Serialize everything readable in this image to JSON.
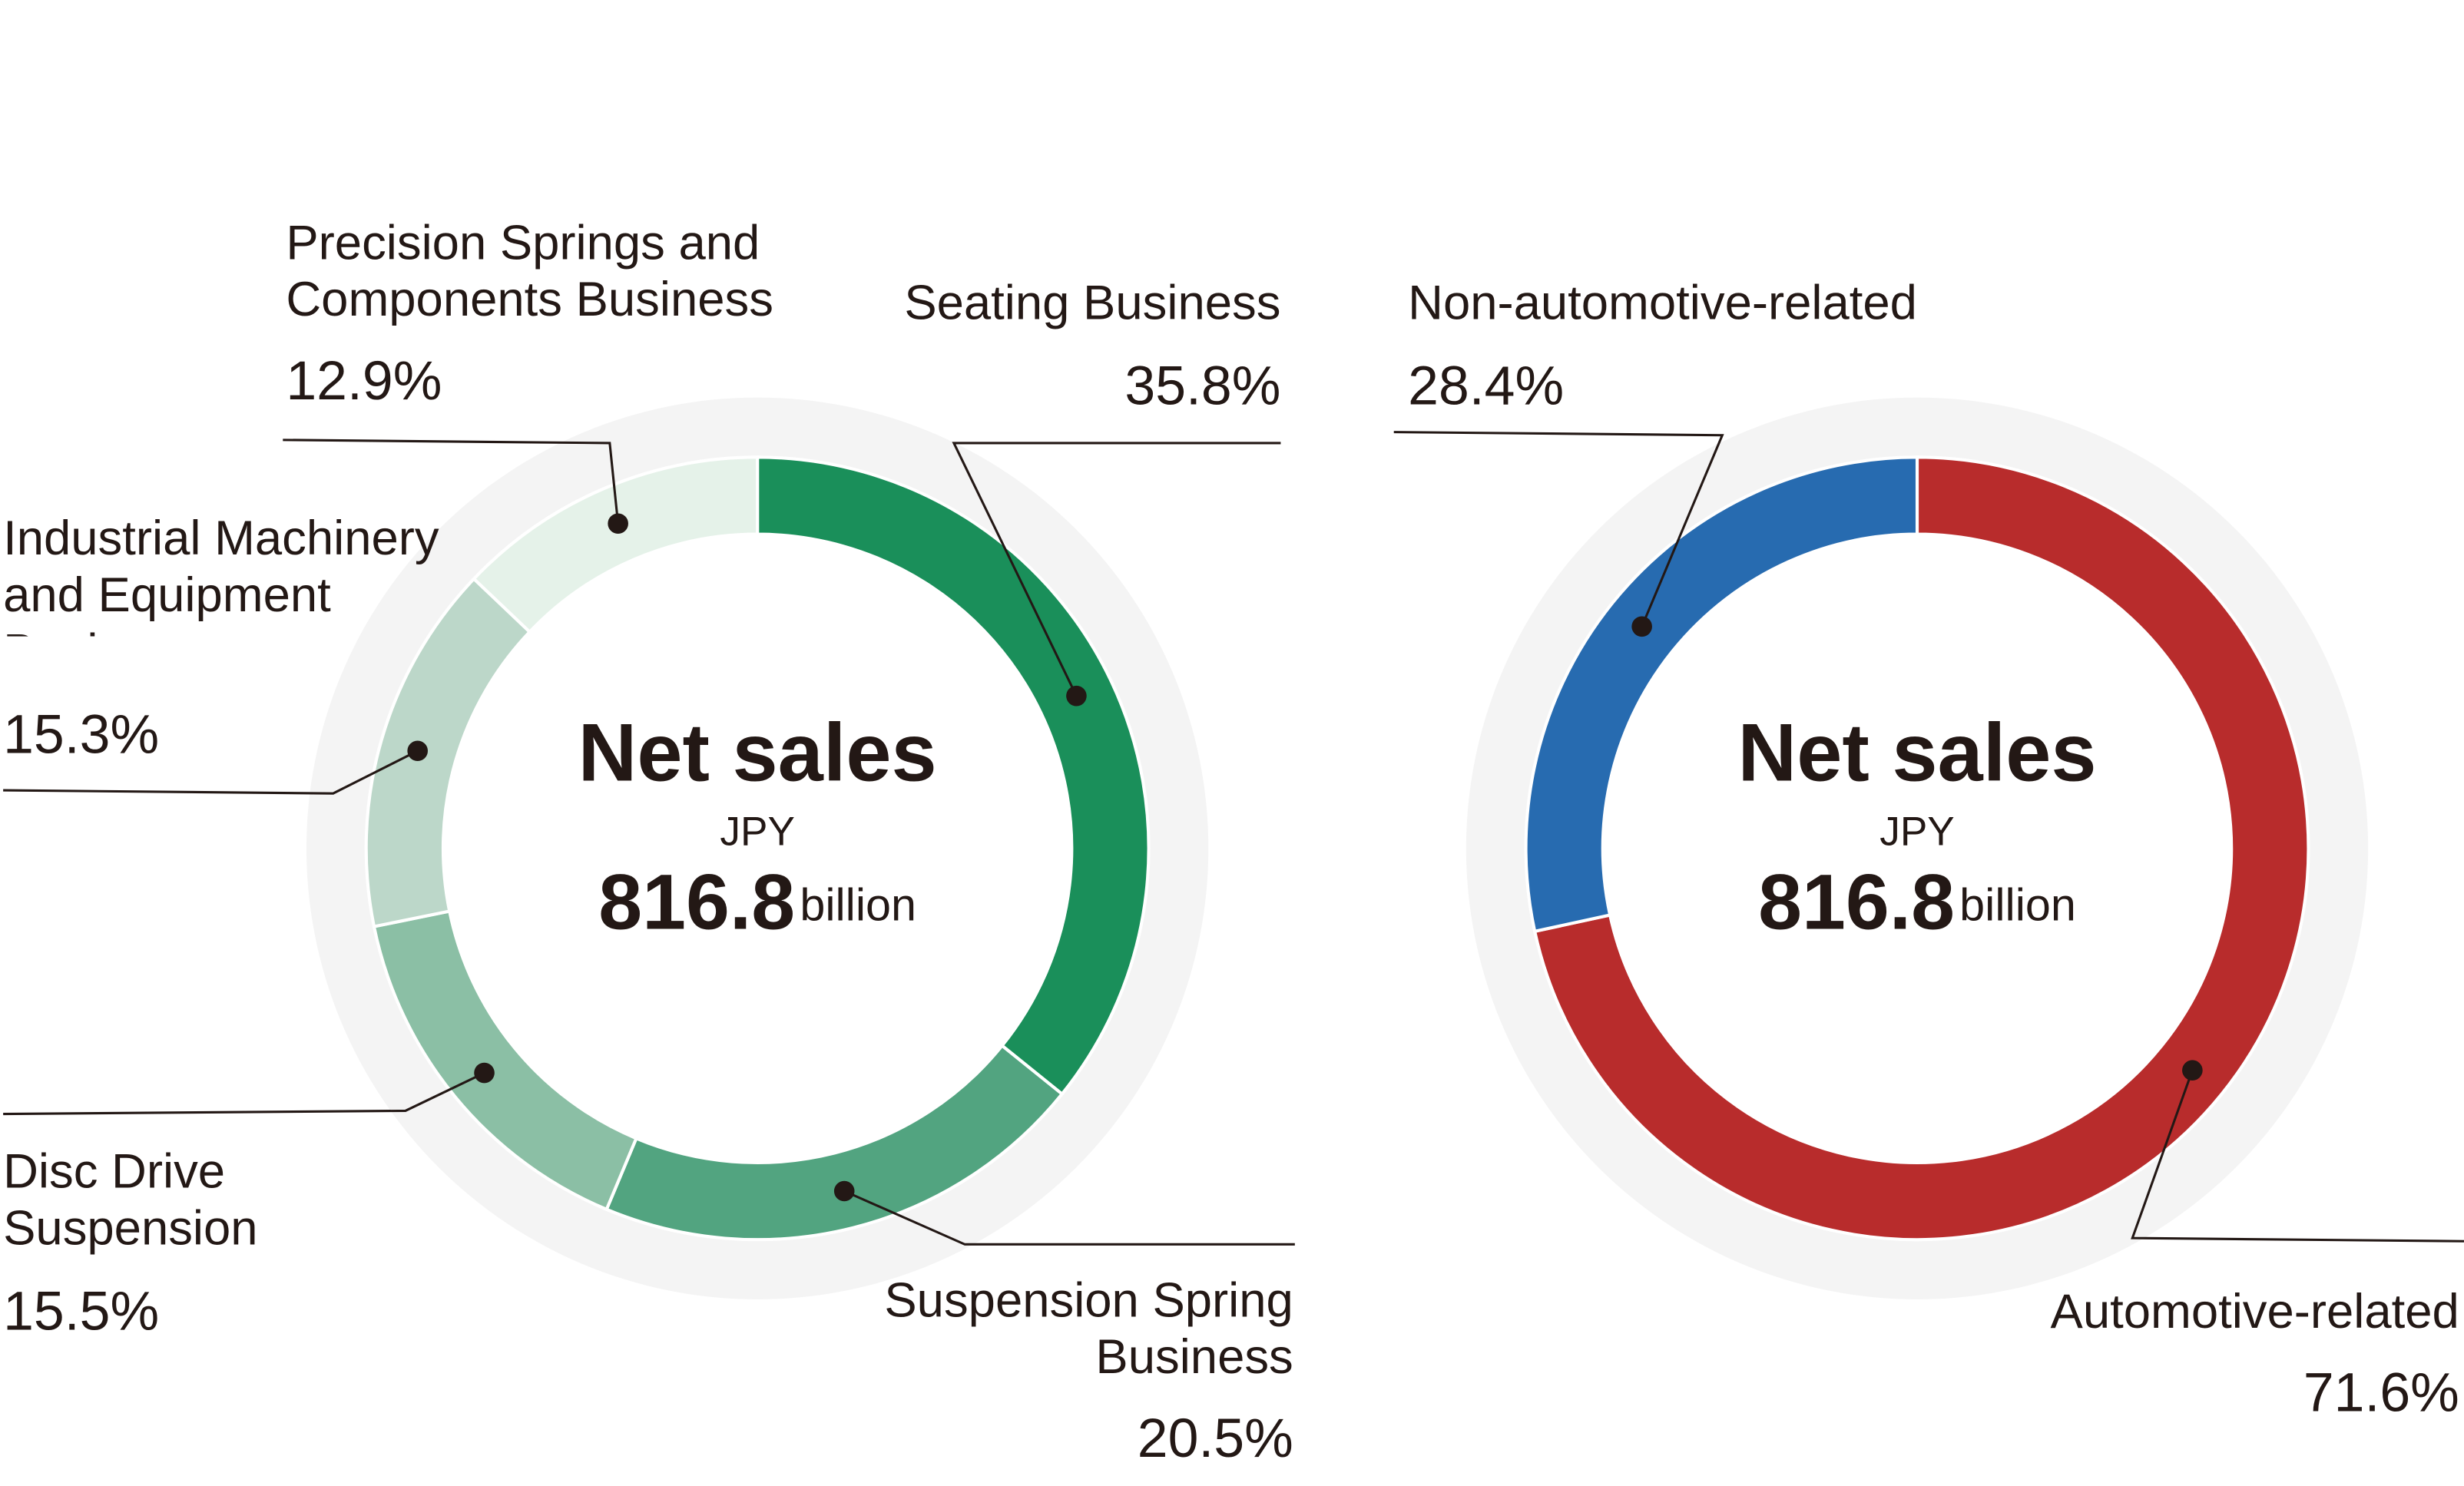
{
  "chart_data": [
    {
      "type": "pie",
      "center_title": "Net sales",
      "center_unit_top": "JPY",
      "center_value": 816.8,
      "center_unit": "billion",
      "categories": [
        "Seating Business",
        "Suspension Spring Business",
        "Disc Drive Suspension",
        "Industrial Machinery and Equipment Business",
        "Precision Springs and Components Business"
      ],
      "values": [
        35.8,
        20.5,
        15.5,
        15.3,
        12.9
      ],
      "value_labels": [
        "35.8%",
        "20.5%",
        "15.5%",
        "15.3%",
        "12.9%"
      ],
      "colors": [
        "#1a8f5a",
        "#52a480",
        "#8bbfa5",
        "#bcd7c9",
        "#e5f2e9"
      ]
    },
    {
      "type": "pie",
      "center_title": "Net sales",
      "center_unit_top": "JPY",
      "center_value": 816.8,
      "center_unit": "billion",
      "categories": [
        "Automotive-related",
        "Non-automotive-related"
      ],
      "values": [
        71.6,
        28.4
      ],
      "value_labels": [
        "71.6%",
        "28.4%"
      ],
      "colors": [
        "#b82c2c",
        "#276bb0"
      ]
    }
  ]
}
